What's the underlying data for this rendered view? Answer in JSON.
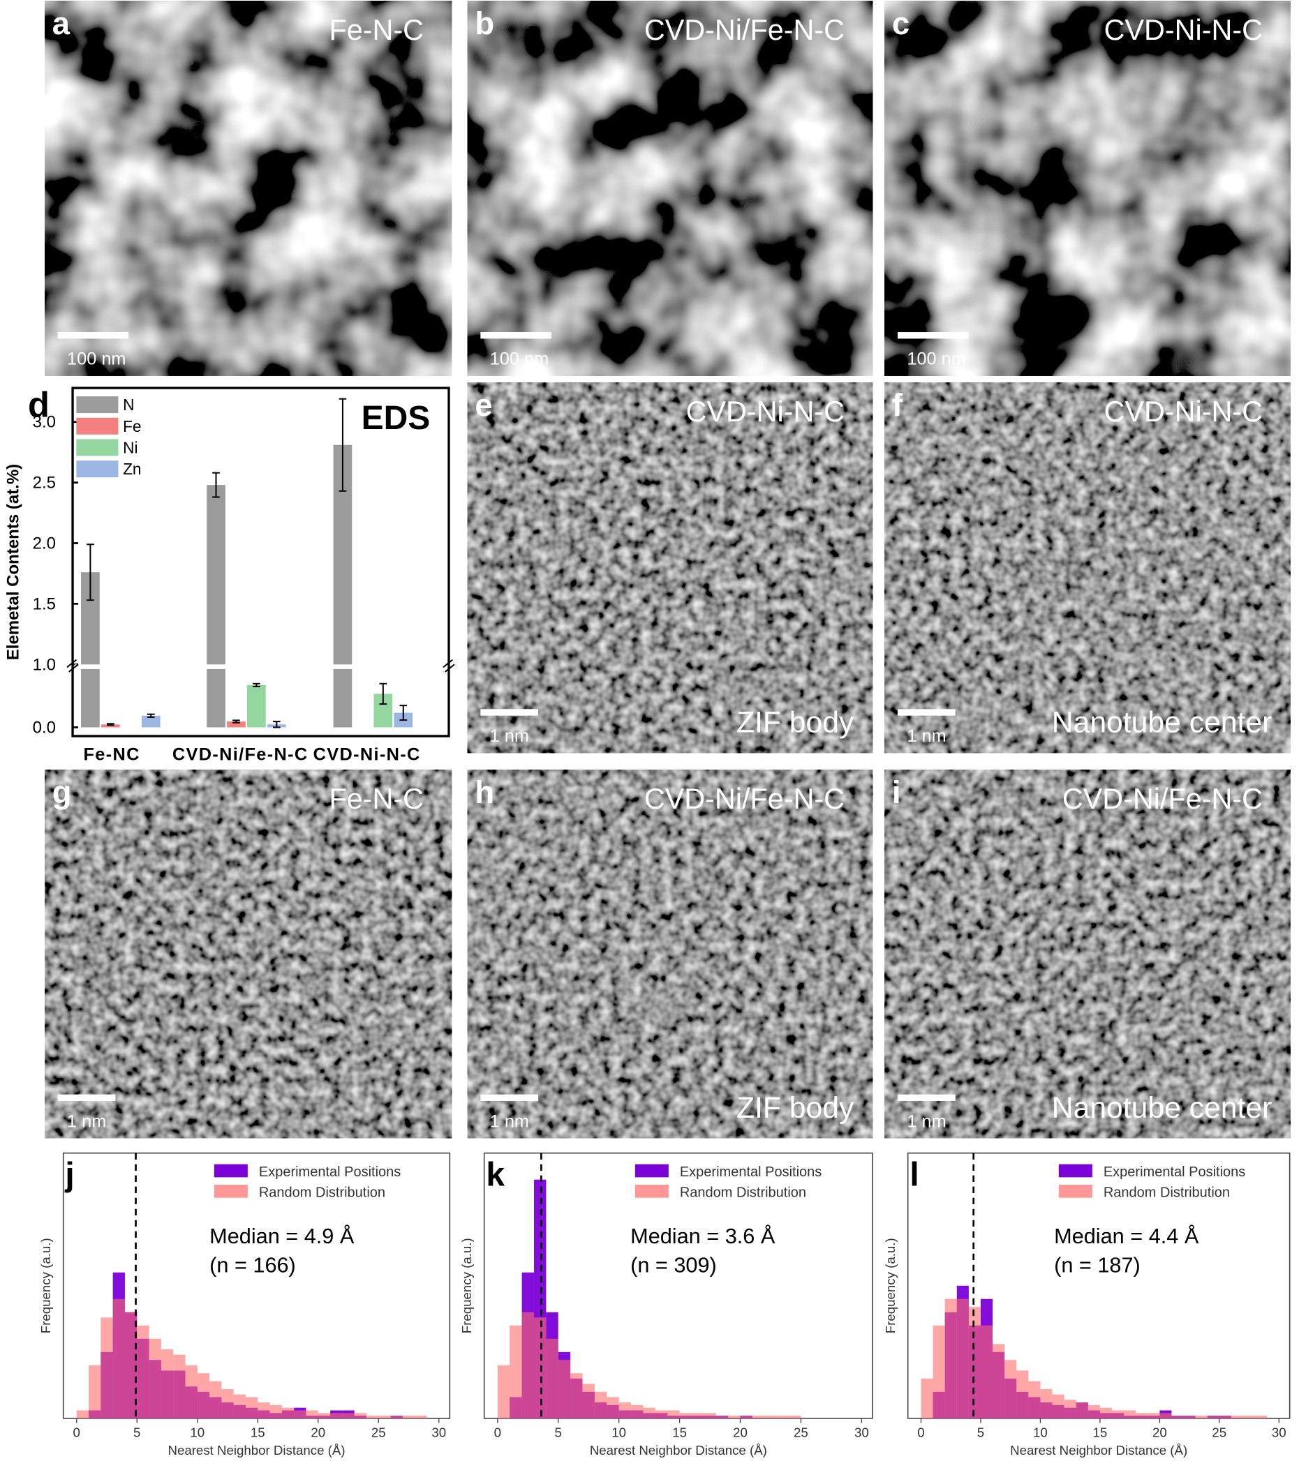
{
  "images": [
    {
      "letter": "a",
      "label": "Fe-N-C",
      "scale_bar": "100 nm"
    },
    {
      "letter": "b",
      "label": "CVD-Ni/Fe-N-C",
      "scale_bar": "100 nm"
    },
    {
      "letter": "c",
      "label": "CVD-Ni-N-C",
      "scale_bar": "100 nm"
    },
    {
      "letter": "e",
      "label": "CVD-Ni-N-C",
      "scale_bar": "1 nm",
      "region": "ZIF body"
    },
    {
      "letter": "f",
      "label": "CVD-Ni-N-C",
      "scale_bar": "1 nm",
      "region": "Nanotube center"
    },
    {
      "letter": "g",
      "label": "Fe-N-C",
      "scale_bar": "1 nm"
    },
    {
      "letter": "h",
      "label": "CVD-Ni/Fe-N-C",
      "scale_bar": "1 nm",
      "region": "ZIF body"
    },
    {
      "letter": "i",
      "label": "CVD-Ni/Fe-N-C",
      "scale_bar": "1 nm",
      "region": "Nanotube center"
    }
  ],
  "chart_data": [
    {
      "type": "bar",
      "panel": "d",
      "annotation": "EDS",
      "y_label": "Elemetal Contents (at.%)",
      "categories": [
        "Fe-NC",
        "CVD-Ni/Fe-N-C",
        "CVD-Ni-N-C"
      ],
      "segments": [
        {
          "ylim": [
            -0.06,
            0.4
          ],
          "yticks": [
            {
              "value": 0,
              "label": "0.0"
            }
          ]
        },
        {
          "ylim": [
            1.0,
            3.28
          ],
          "yticks": [
            {
              "value": 1,
              "label": "1.0"
            },
            1.5,
            {
              "value": 2,
              "label": "2.0"
            },
            2.5,
            {
              "value": 3,
              "label": "3.0"
            }
          ]
        }
      ],
      "series": [
        {
          "name": "N",
          "color": "#9b9b9b",
          "values": [
            1.76,
            2.48,
            2.81
          ],
          "errors": [
            0.23,
            0.1,
            0.38
          ]
        },
        {
          "name": "Fe",
          "color": "#f47f7f",
          "values": [
            0.02,
            0.04,
            0
          ],
          "errors": [
            0.005,
            0.008,
            0
          ]
        },
        {
          "name": "Ni",
          "color": "#93d6a0",
          "values": [
            0,
            0.29,
            0.23
          ],
          "errors": [
            0,
            0.01,
            0.07
          ]
        },
        {
          "name": "Zn",
          "color": "#9bb7e2",
          "values": [
            0.08,
            0.02,
            0.1
          ],
          "errors": [
            0.01,
            0.02,
            0.05
          ]
        }
      ]
    },
    {
      "type": "histogram",
      "panel": "j",
      "x_label": "Nearest Neighbor Distance (Å)",
      "y_label": "Frequency (a.u.)",
      "annotations": [
        "Median = 4.9 Å",
        "(n = 166)"
      ],
      "median": 4.9,
      "bins": [
        0,
        1,
        2,
        3,
        4,
        5,
        6,
        7,
        8,
        9,
        10,
        11,
        12,
        13,
        14,
        15,
        16,
        17,
        18,
        19,
        20,
        21,
        22,
        23,
        24,
        25,
        26,
        27,
        28,
        29
      ],
      "xlim": [
        -1.1,
        30.9
      ],
      "xticks": [
        0,
        5,
        10,
        15,
        20,
        25,
        30
      ],
      "ylim": [
        0,
        100
      ],
      "series": [
        {
          "name": "Experimental Positions",
          "color": "#7b00d8",
          "values": [
            0,
            3,
            25,
            55,
            40,
            30,
            22,
            18,
            18,
            12,
            10,
            8,
            6,
            5,
            4,
            3,
            2,
            3,
            4,
            1,
            1,
            3,
            3,
            1,
            0,
            0,
            1,
            0,
            0
          ]
        },
        {
          "name": "Random Distribution",
          "color": "#ff6b6b",
          "values": [
            3,
            20,
            38,
            45,
            40,
            35,
            30,
            26,
            24,
            20,
            17,
            14,
            11,
            9,
            8,
            6,
            5,
            4,
            3,
            3,
            2,
            2,
            2,
            2,
            1,
            1,
            1,
            1,
            1
          ]
        }
      ]
    },
    {
      "type": "histogram",
      "panel": "k",
      "x_label": "Nearest Neighbor Distance (Å)",
      "y_label": "Frequency (a.u.)",
      "annotations": [
        "Median = 3.6 Å",
        "(n = 309)"
      ],
      "median": 3.6,
      "bins": [
        0,
        1,
        2,
        3,
        4,
        5,
        6,
        7,
        8,
        9,
        10,
        11,
        12,
        13,
        14,
        15,
        16,
        17,
        18,
        19,
        20,
        21,
        22,
        23,
        24,
        25,
        26,
        27,
        28,
        29
      ],
      "xlim": [
        -1.1,
        30.9
      ],
      "xticks": [
        0,
        5,
        10,
        15,
        20,
        25,
        30
      ],
      "ylim": [
        0,
        100
      ],
      "series": [
        {
          "name": "Experimental Positions",
          "color": "#7b00d8",
          "values": [
            0,
            8,
            55,
            90,
            40,
            25,
            15,
            10,
            6,
            5,
            3,
            3,
            2,
            2,
            1,
            1,
            1,
            1,
            1,
            0,
            1,
            0,
            0,
            0,
            0,
            0,
            0,
            0,
            0
          ]
        },
        {
          "name": "Random Distribution",
          "color": "#ff6b6b",
          "values": [
            20,
            35,
            40,
            38,
            30,
            22,
            17,
            13,
            10,
            8,
            6,
            5,
            4,
            3,
            3,
            2,
            2,
            2,
            1,
            1,
            1,
            1,
            1,
            1,
            1,
            0,
            0,
            0,
            0
          ]
        }
      ]
    },
    {
      "type": "histogram",
      "panel": "l",
      "x_label": "Nearest Neighbor Distance (Å)",
      "y_label": "Frequency (a.u.)",
      "annotations": [
        "Median = 4.4 Å",
        "(n = 187)"
      ],
      "median": 4.4,
      "bins": [
        0,
        1,
        2,
        3,
        4,
        5,
        6,
        7,
        8,
        9,
        10,
        11,
        12,
        13,
        14,
        15,
        16,
        17,
        18,
        19,
        20,
        21,
        22,
        23,
        24,
        25,
        26,
        27,
        28,
        29
      ],
      "xlim": [
        -1.1,
        30.9
      ],
      "xticks": [
        0,
        5,
        10,
        15,
        20,
        25,
        30
      ],
      "ylim": [
        0,
        100
      ],
      "series": [
        {
          "name": "Experimental Positions",
          "color": "#7b00d8",
          "values": [
            0,
            10,
            40,
            50,
            35,
            45,
            25,
            15,
            10,
            8,
            6,
            5,
            4,
            6,
            3,
            2,
            2,
            1,
            1,
            1,
            3,
            1,
            1,
            0,
            1,
            1,
            0,
            0,
            0
          ]
        },
        {
          "name": "Random Distribution",
          "color": "#ff6b6b",
          "values": [
            15,
            35,
            45,
            45,
            42,
            35,
            28,
            22,
            18,
            14,
            11,
            9,
            7,
            6,
            5,
            4,
            3,
            3,
            2,
            2,
            2,
            1,
            1,
            1,
            1,
            1,
            1,
            1,
            1
          ]
        }
      ]
    }
  ]
}
